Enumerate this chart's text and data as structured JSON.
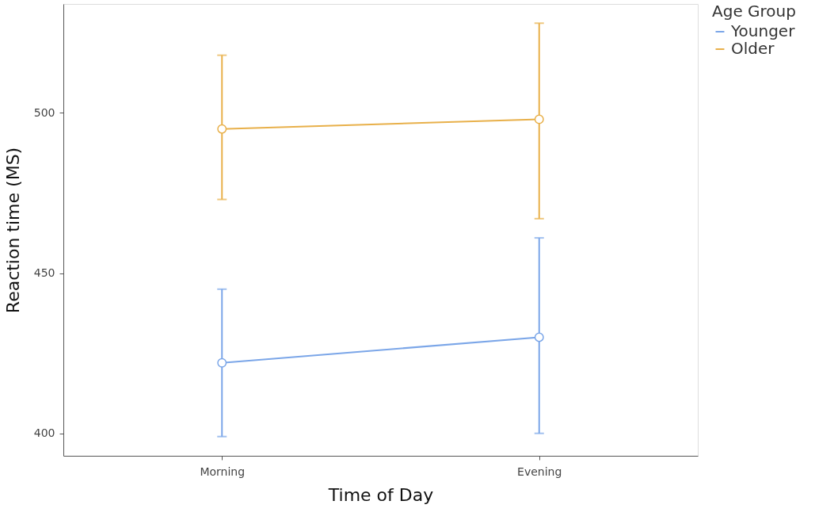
{
  "chart_data": {
    "type": "line",
    "xlabel": "Time of Day",
    "ylabel": "Reaction time (MS)",
    "legend_title": "Age Group",
    "categories": [
      "Morning",
      "Evening"
    ],
    "series": [
      {
        "name": "Younger",
        "color": "#7ba6e8",
        "values": [
          422,
          430
        ],
        "errors": [
          [
            399,
            445
          ],
          [
            400,
            461
          ]
        ]
      },
      {
        "name": "Older",
        "color": "#e8b04a",
        "values": [
          495,
          498
        ],
        "errors": [
          [
            473,
            518
          ],
          [
            467,
            528
          ]
        ]
      }
    ],
    "ylim": [
      393,
      534
    ],
    "yticks": [
      400,
      450,
      500
    ],
    "grid": false,
    "legend": "right",
    "marker": "circle",
    "line_style": "solid"
  }
}
